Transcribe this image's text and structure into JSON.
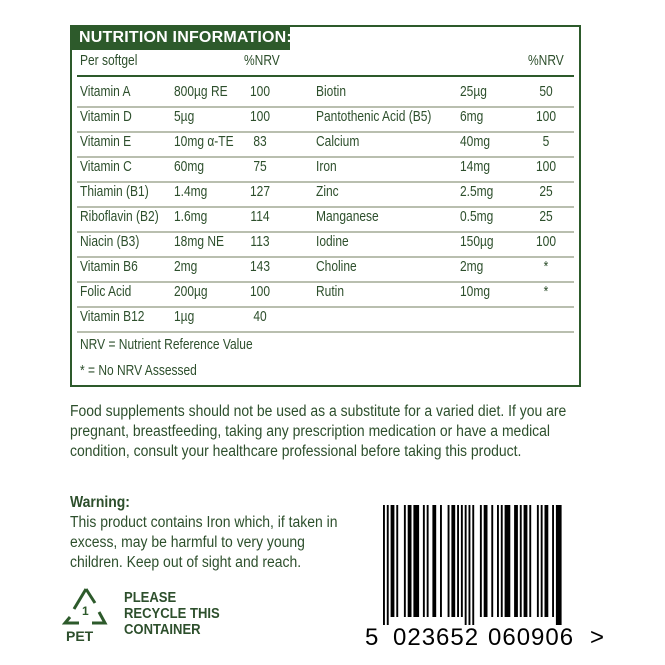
{
  "title": "NUTRITION INFORMATION:",
  "header": {
    "per": "Per softgel",
    "nrv1": "%NRV",
    "nrv2": "%NRV"
  },
  "rows": [
    {
      "l": {
        "name": "Vitamin A",
        "amount": "800µg RE",
        "nrv": "100"
      },
      "r": {
        "name": "Biotin",
        "amount": "25µg",
        "nrv": "50"
      }
    },
    {
      "l": {
        "name": "Vitamin D",
        "amount": "5µg",
        "nrv": "100"
      },
      "r": {
        "name": "Pantothenic Acid (B5)",
        "amount": "6mg",
        "nrv": "100"
      }
    },
    {
      "l": {
        "name": "Vitamin E",
        "amount": "10mg α-TE",
        "nrv": "83"
      },
      "r": {
        "name": "Calcium",
        "amount": "40mg",
        "nrv": "5"
      }
    },
    {
      "l": {
        "name": "Vitamin C",
        "amount": "60mg",
        "nrv": "75"
      },
      "r": {
        "name": "Iron",
        "amount": "14mg",
        "nrv": "100"
      }
    },
    {
      "l": {
        "name": "Thiamin (B1)",
        "amount": "1.4mg",
        "nrv": "127"
      },
      "r": {
        "name": "Zinc",
        "amount": "2.5mg",
        "nrv": "25"
      }
    },
    {
      "l": {
        "name": "Riboflavin (B2)",
        "amount": "1.6mg",
        "nrv": "114"
      },
      "r": {
        "name": "Manganese",
        "amount": "0.5mg",
        "nrv": "25"
      }
    },
    {
      "l": {
        "name": "Niacin (B3)",
        "amount": "18mg NE",
        "nrv": "113"
      },
      "r": {
        "name": "Iodine",
        "amount": "150µg",
        "nrv": "100"
      }
    },
    {
      "l": {
        "name": "Vitamin B6",
        "amount": "2mg",
        "nrv": "143"
      },
      "r": {
        "name": "Choline",
        "amount": "2mg",
        "nrv": "*"
      }
    },
    {
      "l": {
        "name": "Folic Acid",
        "amount": "200µg",
        "nrv": "100"
      },
      "r": {
        "name": "Rutin",
        "amount": "10mg",
        "nrv": "*"
      }
    },
    {
      "l": {
        "name": "Vitamin B12",
        "amount": "1µg",
        "nrv": "40"
      },
      "r": {
        "name": "",
        "amount": "",
        "nrv": ""
      }
    }
  ],
  "notes": [
    "NRV = Nutrient Reference Value",
    "* = No NRV Assessed"
  ],
  "advice": "Food supplements should not be used as a substitute for a varied diet. If you are pregnant, breastfeeding, taking any prescription medication or have a medical condition, consult your healthcare professional before taking this product.",
  "warning": {
    "title": "Warning:",
    "text": "This product contains Iron which, if taken in excess, may be harmful to very young children. Keep out of sight and reach."
  },
  "recycle": {
    "number": "1",
    "material": "PET",
    "text": [
      "PLEASE",
      "RECYCLE THIS",
      "CONTAINER"
    ]
  },
  "barcode": {
    "first": "5",
    "left": "023652",
    "right": "060906",
    "arrow": ">"
  }
}
